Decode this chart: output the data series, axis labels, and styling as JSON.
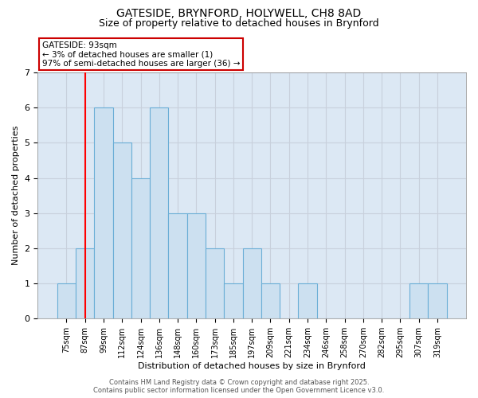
{
  "title1": "GATESIDE, BRYNFORD, HOLYWELL, CH8 8AD",
  "title2": "Size of property relative to detached houses in Brynford",
  "xlabel": "Distribution of detached houses by size in Brynford",
  "ylabel": "Number of detached properties",
  "bin_labels": [
    "75sqm",
    "87sqm",
    "99sqm",
    "112sqm",
    "124sqm",
    "136sqm",
    "148sqm",
    "160sqm",
    "173sqm",
    "185sqm",
    "197sqm",
    "209sqm",
    "221sqm",
    "234sqm",
    "246sqm",
    "258sqm",
    "270sqm",
    "282sqm",
    "295sqm",
    "307sqm",
    "319sqm"
  ],
  "bar_heights": [
    1,
    2,
    6,
    5,
    4,
    6,
    3,
    3,
    2,
    1,
    2,
    1,
    0,
    1,
    0,
    0,
    0,
    0,
    0,
    1,
    1
  ],
  "bar_color": "#cce0f0",
  "bar_edgecolor": "#6aaed6",
  "red_line_x": 1,
  "annotation_text": "GATESIDE: 93sqm\n← 3% of detached houses are smaller (1)\n97% of semi-detached houses are larger (36) →",
  "annotation_box_facecolor": "#ffffff",
  "annotation_box_edgecolor": "#cc0000",
  "ylim": [
    0,
    7
  ],
  "yticks": [
    0,
    1,
    2,
    3,
    4,
    5,
    6,
    7
  ],
  "grid_color": "#c8d0dc",
  "background_color": "#dce8f4",
  "figure_facecolor": "#ffffff",
  "footnote": "Contains HM Land Registry data © Crown copyright and database right 2025.\nContains public sector information licensed under the Open Government Licence v3.0."
}
